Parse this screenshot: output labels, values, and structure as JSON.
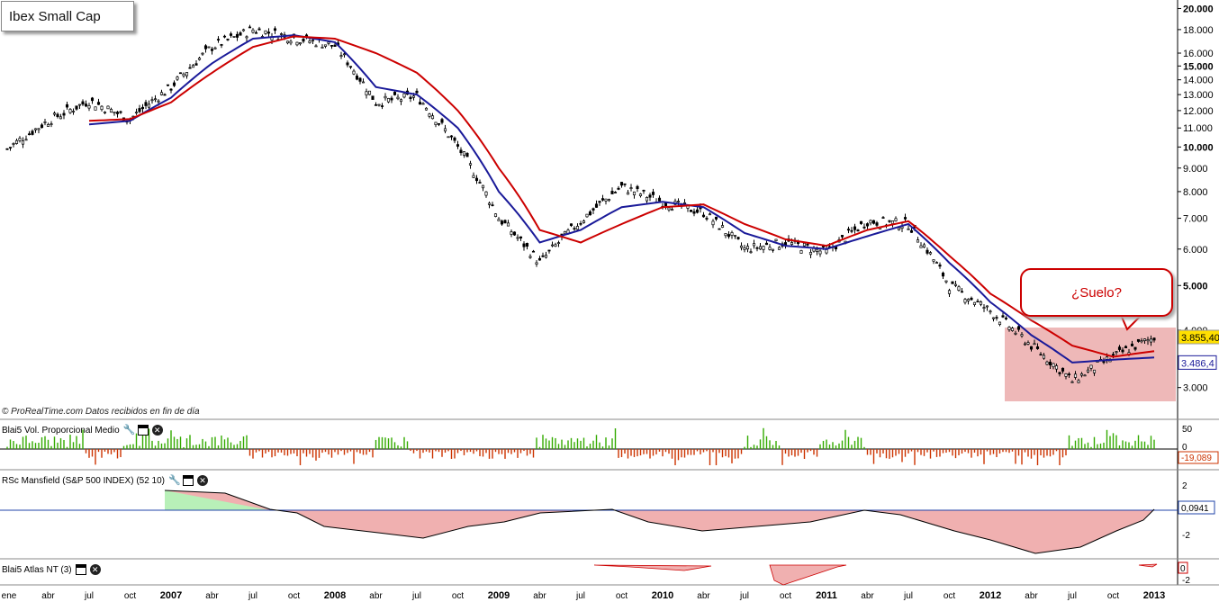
{
  "title": "Ibex Small Cap",
  "source_note": "© ProRealTime.com  Datos recibidos en fin de día",
  "callout": "¿Suelo?",
  "colors": {
    "candle": "#000000",
    "ma_long": "#cc0000",
    "ma_short": "#1a1a99",
    "volume_up": "#33aa00",
    "volume_down": "#cc3300",
    "rs_pos_fill": "#b8f0b8",
    "rs_neg_fill": "#f0b0b0",
    "highlight_box": "#e8a0a0",
    "price_tag": "#ffe000"
  },
  "main_panel": {
    "y_ticks": [
      "20.000",
      "18.000",
      "16.000",
      "15.000",
      "14.000",
      "13.000",
      "12.000",
      "11.000",
      "10.000",
      "9.000",
      "8.000",
      "7.000",
      "6.000",
      "5.000",
      "4.000",
      "3.000"
    ],
    "current_price": "3.855,40",
    "ma_value": "3.486,4"
  },
  "indicators": [
    {
      "name": "Blai5 Vol. Proporcional Medio",
      "ticks": [
        "50",
        "0"
      ],
      "value": "-19,089"
    },
    {
      "name": "RSc Mansfield (S&P 500 INDEX) (52 10)",
      "ticks": [
        "2",
        "-2"
      ],
      "value": "0,0941"
    },
    {
      "name": "Blai5 Atlas NT (3)",
      "ticks": [
        "0",
        "-2"
      ],
      "value": "0"
    }
  ],
  "x_axis": [
    "ene",
    "abr",
    "jul",
    "oct",
    "2007",
    "abr",
    "jul",
    "oct",
    "2008",
    "abr",
    "jul",
    "oct",
    "2009",
    "abr",
    "jul",
    "oct",
    "2010",
    "abr",
    "jul",
    "oct",
    "2011",
    "abr",
    "jul",
    "oct",
    "2012",
    "abr",
    "jul",
    "oct",
    "2013"
  ],
  "chart_data": {
    "type": "line",
    "title": "Ibex Small Cap",
    "scale": "log",
    "ylim": [
      2800,
      20500
    ],
    "x": [
      "2006-01",
      "2006-04",
      "2006-07",
      "2006-10",
      "2007-01",
      "2007-04",
      "2007-07",
      "2007-10",
      "2008-01",
      "2008-04",
      "2008-07",
      "2008-10",
      "2009-01",
      "2009-04",
      "2009-07",
      "2009-10",
      "2010-01",
      "2010-04",
      "2010-07",
      "2010-10",
      "2011-01",
      "2011-04",
      "2011-07",
      "2011-10",
      "2012-01",
      "2012-04",
      "2012-07",
      "2012-10",
      "2013-01"
    ],
    "series": [
      {
        "values": [
          9900,
          11400,
          12600,
          11500,
          13500,
          16500,
          18000,
          17300,
          16600,
          12500,
          12900,
          10000,
          7000,
          5600,
          6900,
          8200,
          7600,
          7200,
          6000,
          6200,
          5900,
          6900,
          6800,
          5000,
          4400,
          3700,
          3100,
          3500,
          3855
        ]
      },
      {
        "values": [
          null,
          null,
          11400,
          11500,
          12500,
          14500,
          16500,
          17400,
          17200,
          16000,
          14500,
          12000,
          9000,
          6600,
          6200,
          6800,
          7400,
          7500,
          6800,
          6300,
          6100,
          6600,
          6900,
          5800,
          4800,
          4200,
          3700,
          3500,
          3600
        ]
      },
      {
        "values": [
          null,
          null,
          11200,
          11400,
          12800,
          15200,
          17200,
          17500,
          16900,
          13500,
          13000,
          11000,
          8000,
          6200,
          6600,
          7400,
          7600,
          7400,
          6500,
          6100,
          6000,
          6400,
          6800,
          5600,
          4600,
          3900,
          3400,
          3450,
          3486
        ]
      }
    ]
  }
}
